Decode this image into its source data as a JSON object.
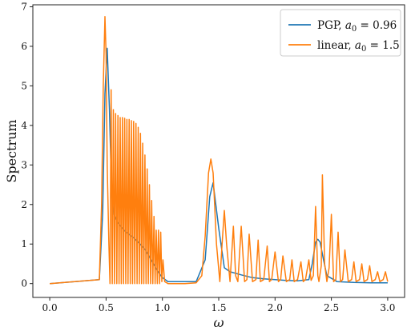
{
  "chart_data": {
    "type": "line",
    "xlabel": "ω",
    "ylabel": "Spectrum",
    "xlim": [
      -0.15,
      3.15
    ],
    "ylim": [
      -0.35,
      7.05
    ],
    "xticks": [
      "0.0",
      "0.5",
      "1.0",
      "1.5",
      "2.0",
      "2.5",
      "3.0"
    ],
    "yticks": [
      "0",
      "1",
      "2",
      "3",
      "4",
      "5",
      "6",
      "7"
    ],
    "grid": false,
    "legend_position": "top-right",
    "series": [
      {
        "name": "PGP, a₀ = 0.96",
        "legend_prefix": "PGP, ",
        "legend_var": "a",
        "legend_sub": "0",
        "legend_value": " = 0.96",
        "color": "#1f77b4",
        "x": [
          0.0,
          0.44,
          0.47,
          0.49,
          0.51,
          0.53,
          0.55,
          0.57,
          0.6,
          0.63,
          0.66,
          0.7,
          0.75,
          0.8,
          0.85,
          0.9,
          0.95,
          1.0,
          1.05,
          1.3,
          1.38,
          1.42,
          1.45,
          1.5,
          1.55,
          1.6,
          1.7,
          1.8,
          1.9,
          2.0,
          2.1,
          2.2,
          2.3,
          2.33,
          2.36,
          2.38,
          2.4,
          2.43,
          2.46,
          2.55,
          2.7,
          2.85,
          3.0
        ],
        "y": [
          0,
          0.1,
          1.8,
          4.8,
          5.95,
          4.4,
          2.2,
          1.75,
          1.55,
          1.45,
          1.35,
          1.25,
          1.15,
          1.0,
          0.85,
          0.6,
          0.35,
          0.15,
          0.05,
          0.05,
          0.6,
          2.2,
          2.55,
          1.4,
          0.4,
          0.3,
          0.22,
          0.15,
          0.12,
          0.1,
          0.08,
          0.07,
          0.1,
          0.5,
          1.05,
          1.12,
          1.05,
          0.6,
          0.2,
          0.05,
          0.03,
          0.02,
          0.02
        ]
      },
      {
        "name": "linear, a₀ = 1.5",
        "legend_prefix": "linear, ",
        "legend_var": "a",
        "legend_sub": "0",
        "legend_value": " = 1.5",
        "color": "#ff7f0e",
        "x": [
          0.0,
          0.44,
          0.46,
          0.475,
          0.49,
          0.5,
          0.51,
          0.525,
          0.535,
          0.545,
          0.555,
          0.565,
          0.575,
          0.585,
          0.595,
          0.605,
          0.615,
          0.625,
          0.635,
          0.645,
          0.655,
          0.665,
          0.675,
          0.685,
          0.695,
          0.705,
          0.715,
          0.725,
          0.735,
          0.745,
          0.755,
          0.765,
          0.775,
          0.785,
          0.795,
          0.805,
          0.815,
          0.825,
          0.835,
          0.845,
          0.855,
          0.865,
          0.875,
          0.885,
          0.895,
          0.905,
          0.915,
          0.925,
          0.935,
          0.945,
          0.955,
          0.965,
          0.975,
          0.985,
          0.995,
          1.005,
          1.02,
          1.05,
          1.1,
          1.2,
          1.3,
          1.35,
          1.38,
          1.41,
          1.43,
          1.45,
          1.48,
          1.51,
          1.53,
          1.55,
          1.57,
          1.6,
          1.63,
          1.65,
          1.67,
          1.7,
          1.73,
          1.75,
          1.77,
          1.8,
          1.83,
          1.85,
          1.87,
          1.9,
          1.93,
          1.95,
          1.97,
          2.0,
          2.03,
          2.05,
          2.07,
          2.1,
          2.13,
          2.15,
          2.17,
          2.2,
          2.23,
          2.25,
          2.27,
          2.3,
          2.32,
          2.34,
          2.36,
          2.38,
          2.39,
          2.41,
          2.42,
          2.44,
          2.46,
          2.48,
          2.5,
          2.52,
          2.54,
          2.56,
          2.58,
          2.6,
          2.62,
          2.65,
          2.68,
          2.7,
          2.72,
          2.75,
          2.77,
          2.79,
          2.82,
          2.84,
          2.86,
          2.89,
          2.91,
          2.93,
          2.96,
          2.98,
          3.0
        ],
        "y": [
          0,
          0.1,
          2.0,
          5.0,
          6.75,
          5.8,
          3.0,
          1.0,
          0.0,
          4.9,
          0.0,
          4.4,
          0.0,
          4.3,
          0.0,
          4.25,
          0.0,
          4.2,
          0.0,
          4.2,
          0.0,
          4.18,
          0.0,
          4.15,
          0.0,
          4.15,
          0.0,
          4.12,
          0.0,
          4.1,
          0.0,
          4.05,
          0.0,
          3.95,
          0.0,
          3.8,
          0.0,
          3.55,
          0.0,
          3.25,
          0.0,
          2.9,
          0.0,
          2.5,
          0.0,
          2.1,
          0.0,
          1.7,
          0.0,
          1.35,
          0.0,
          1.35,
          0.0,
          1.3,
          0.05,
          0.6,
          0.05,
          0.0,
          0.0,
          0.0,
          0.02,
          0.2,
          1.2,
          2.8,
          3.15,
          2.8,
          1.0,
          0.05,
          1.0,
          1.85,
          1.0,
          0.05,
          1.45,
          0.2,
          0.05,
          1.45,
          0.05,
          0.1,
          1.25,
          0.05,
          0.1,
          1.1,
          0.05,
          0.1,
          0.95,
          0.05,
          0.1,
          0.8,
          0.05,
          0.1,
          0.7,
          0.05,
          0.1,
          0.6,
          0.05,
          0.1,
          0.55,
          0.05,
          0.1,
          0.6,
          0.08,
          0.2,
          1.95,
          0.2,
          0.05,
          0.45,
          2.75,
          0.5,
          0.05,
          0.4,
          1.75,
          0.05,
          0.1,
          1.3,
          0.05,
          0.1,
          0.85,
          0.05,
          0.1,
          0.55,
          0.05,
          0.1,
          0.5,
          0.05,
          0.1,
          0.45,
          0.05,
          0.1,
          0.3,
          0.05,
          0.1,
          0.3,
          0.05
        ]
      }
    ]
  }
}
